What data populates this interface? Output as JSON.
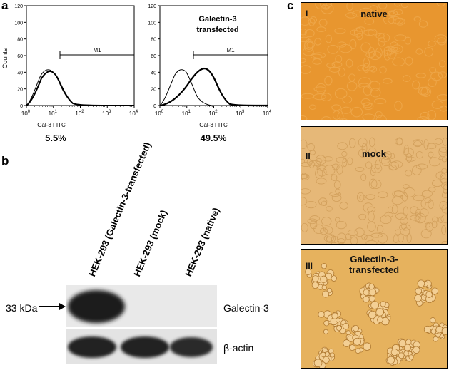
{
  "panel_a": {
    "label": "a",
    "y_axis_label": "Counts",
    "y_ticks": [
      "0",
      "20",
      "40",
      "60",
      "80",
      "100",
      "120"
    ],
    "x_tick_base": "10",
    "x_tick_exponents": [
      "0",
      "1",
      "2",
      "3",
      "4"
    ],
    "x_axis_label": "Gal-3 FITC",
    "gate_label": "M1",
    "left_percent": "5.5%",
    "right_percent": "49.5%",
    "right_title_line1": "Galectin-3",
    "right_title_line2": "transfected"
  },
  "panel_b": {
    "label": "b",
    "lanes": [
      "HEK-293 (Galectin-3-transfected)",
      "HEK-293 (mock)",
      "HEK-293 (native)"
    ],
    "size_marker": "33 kDa",
    "band_galectin": "Galectin-3",
    "band_actin": "β-actin"
  },
  "panel_c": {
    "label": "c",
    "images": [
      {
        "roman": "I",
        "caption_line1": "native",
        "caption_line2": ""
      },
      {
        "roman": "II",
        "caption_line1": "mock",
        "caption_line2": ""
      },
      {
        "roman": "III",
        "caption_line1": "Galectin-3-",
        "caption_line2": "transfected"
      }
    ],
    "colors": {
      "native_bg": "#e8962f",
      "mock_bg": "#e6b878",
      "transfected_bg": "#e6b25e"
    }
  }
}
